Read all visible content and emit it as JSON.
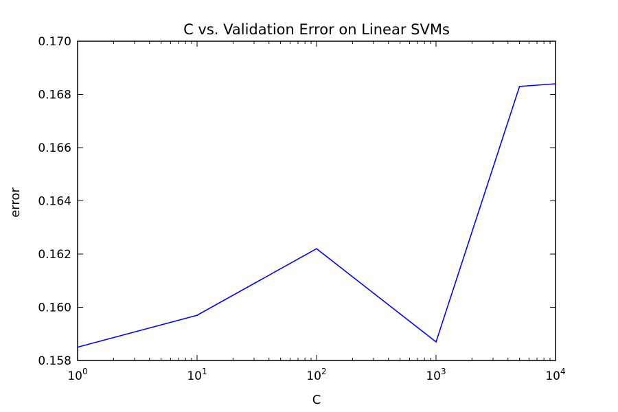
{
  "chart_data": {
    "type": "line",
    "title": "C vs. Validation Error on Linear SVMs",
    "xlabel": "C",
    "ylabel": "error",
    "x_scale": "log",
    "xlim": [
      1,
      10000
    ],
    "ylim": [
      0.158,
      0.17
    ],
    "x_ticks": [
      {
        "value": 1,
        "base": "10",
        "exp": "0"
      },
      {
        "value": 10,
        "base": "10",
        "exp": "1"
      },
      {
        "value": 100,
        "base": "10",
        "exp": "2"
      },
      {
        "value": 1000,
        "base": "10",
        "exp": "3"
      },
      {
        "value": 10000,
        "base": "10",
        "exp": "4"
      }
    ],
    "y_ticks": [
      "0.158",
      "0.160",
      "0.162",
      "0.164",
      "0.166",
      "0.168",
      "0.170"
    ],
    "grid": false,
    "line_color": "#0000ff",
    "series": [
      {
        "x": [
          1,
          10,
          100,
          1000,
          5000,
          10000
        ],
        "values": [
          0.1585,
          0.1597,
          0.1622,
          0.1587,
          0.1683,
          0.1684
        ]
      }
    ]
  }
}
